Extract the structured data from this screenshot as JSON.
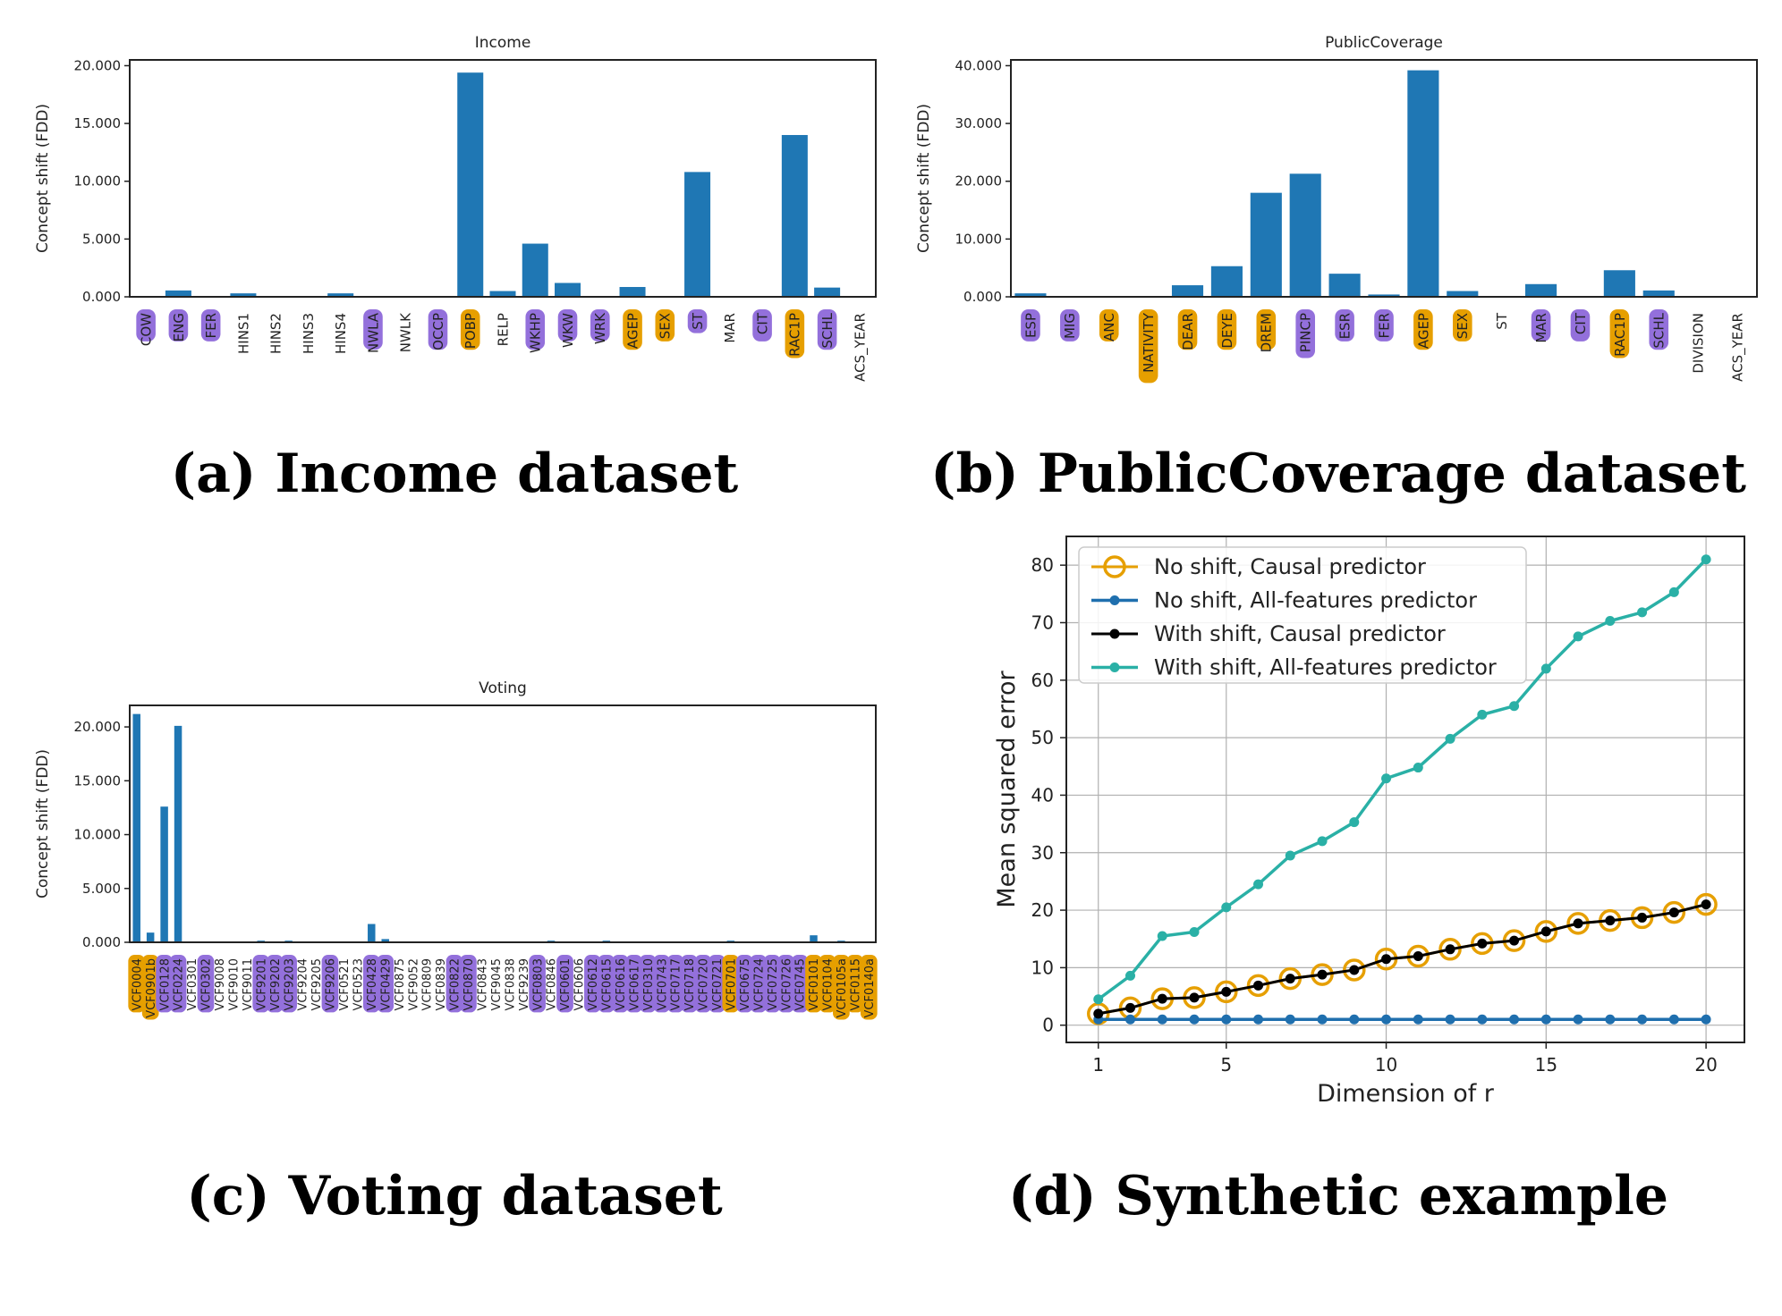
{
  "captions": {
    "a": "(a) Income dataset",
    "b": "(b) PublicCoverage dataset",
    "c": "(c) Voting dataset",
    "d": "(d) Synthetic example"
  },
  "colors": {
    "bar": "#1f77b4",
    "causal_highlight": "#e69f00",
    "anticausal_highlight": "#9370db",
    "no_shift_causal": "#e69f00",
    "no_shift_all": "#1f6fae",
    "with_shift_causal": "#000000",
    "with_shift_all": "#2ab0a6"
  },
  "chart_data": [
    {
      "id": "income",
      "type": "bar",
      "title": "Income",
      "ylabel": "Concept shift (FDD)",
      "xlabel": "",
      "ylim": [
        0,
        20.5
      ],
      "yticks": [
        0,
        5,
        10,
        15,
        20
      ],
      "ytick_labels": [
        "0.000",
        "5.000",
        "10.000",
        "15.000",
        "20.000"
      ],
      "categories": [
        "COW",
        "ENG",
        "FER",
        "HINS1",
        "HINS2",
        "HINS3",
        "HINS4",
        "NWLA",
        "NWLK",
        "OCCP",
        "POBP",
        "RELP",
        "WKHP",
        "WKW",
        "WRK",
        "AGEP",
        "SEX",
        "ST",
        "MAR",
        "CIT",
        "RAC1P",
        "SCHL",
        "ACS_YEAR"
      ],
      "values": [
        0.05,
        0.55,
        0.05,
        0.3,
        0.02,
        0.02,
        0.3,
        0.02,
        0.02,
        0.02,
        19.4,
        0.5,
        4.6,
        1.2,
        0.02,
        0.85,
        0.02,
        10.8,
        0.02,
        0.02,
        14.0,
        0.8,
        0.02
      ],
      "highlight": [
        "purple",
        "purple",
        "purple",
        "none",
        "none",
        "none",
        "none",
        "purple",
        "none",
        "purple",
        "orange",
        "none",
        "purple",
        "purple",
        "purple",
        "orange",
        "orange",
        "purple",
        "none",
        "purple",
        "orange",
        "purple",
        "none"
      ]
    },
    {
      "id": "publiccoverage",
      "type": "bar",
      "title": "PublicCoverage",
      "ylabel": "Concept shift (FDD)",
      "xlabel": "",
      "ylim": [
        0,
        41
      ],
      "yticks": [
        0,
        10,
        20,
        30,
        40
      ],
      "ytick_labels": [
        "0.000",
        "10.000",
        "20.000",
        "30.000",
        "40.000"
      ],
      "categories": [
        "ESP",
        "MIG",
        "ANC",
        "NATIVITY",
        "DEAR",
        "DEYE",
        "DREM",
        "PINCP",
        "ESR",
        "FER",
        "AGEP",
        "SEX",
        "ST",
        "MAR",
        "CIT",
        "RAC1P",
        "SCHL",
        "DIVISION",
        "ACS_YEAR"
      ],
      "values": [
        0.6,
        0.02,
        0.02,
        0.02,
        2.0,
        5.3,
        18.0,
        21.3,
        4.0,
        0.4,
        39.2,
        1.0,
        0.02,
        2.2,
        0.02,
        4.6,
        1.1,
        0.02,
        0.02
      ],
      "highlight": [
        "purple",
        "purple",
        "orange",
        "orange",
        "orange",
        "orange",
        "orange",
        "purple",
        "purple",
        "purple",
        "orange",
        "orange",
        "none",
        "purple",
        "purple",
        "orange",
        "purple",
        "none",
        "none"
      ]
    },
    {
      "id": "voting",
      "type": "bar",
      "title": "Voting",
      "ylabel": "Concept shift (FDD)",
      "xlabel": "",
      "ylim": [
        0,
        22
      ],
      "yticks": [
        0,
        5,
        10,
        15,
        20
      ],
      "ytick_labels": [
        "0.000",
        "5.000",
        "10.000",
        "15.000",
        "20.000"
      ],
      "categories": [
        "VCF0004",
        "VCF0901b",
        "VCF0128",
        "VCF0224",
        "VCF0301",
        "VCF0302",
        "VCF9008",
        "VCF9010",
        "VCF9011",
        "VCF9201",
        "VCF9202",
        "VCF9203",
        "VCF9204",
        "VCF9205",
        "VCF9206",
        "VCF0521",
        "VCF0523",
        "VCF0428",
        "VCF0429",
        "VCF0875",
        "VCF9052",
        "VCF0809",
        "VCF0839",
        "VCF0822",
        "VCF0870",
        "VCF0843",
        "VCF9045",
        "VCF0838",
        "VCF9239",
        "VCF0803",
        "VCF0846",
        "VCF0601",
        "VCF0606",
        "VCF0612",
        "VCF0615",
        "VCF0616",
        "VCF0617",
        "VCF0310",
        "VCF0743",
        "VCF0717",
        "VCF0718",
        "VCF0720",
        "VCF0721",
        "VCF0701",
        "VCF0675",
        "VCF0724",
        "VCF0725",
        "VCF0726",
        "VCF0745",
        "VCF0101",
        "VCF0104",
        "VCF0105a",
        "VCF0115",
        "VCF0140a"
      ],
      "values": [
        21.2,
        0.9,
        12.6,
        20.1,
        0.02,
        0.02,
        0.02,
        0.02,
        0.02,
        0.15,
        0.02,
        0.15,
        0.02,
        0.02,
        0.02,
        0.02,
        0.02,
        1.7,
        0.3,
        0.02,
        0.02,
        0.02,
        0.02,
        0.02,
        0.02,
        0.02,
        0.02,
        0.02,
        0.02,
        0.02,
        0.15,
        0.02,
        0.02,
        0.02,
        0.15,
        0.02,
        0.02,
        0.02,
        0.02,
        0.02,
        0.02,
        0.02,
        0.02,
        0.15,
        0.02,
        0.02,
        0.02,
        0.02,
        0.02,
        0.65,
        0.02,
        0.15,
        0.02,
        0.02
      ],
      "highlight": [
        "orange",
        "orange",
        "purple",
        "purple",
        "none",
        "purple",
        "none",
        "none",
        "none",
        "purple",
        "purple",
        "purple",
        "none",
        "none",
        "purple",
        "none",
        "none",
        "purple",
        "purple",
        "none",
        "none",
        "none",
        "none",
        "purple",
        "purple",
        "none",
        "none",
        "none",
        "none",
        "purple",
        "none",
        "purple",
        "none",
        "purple",
        "purple",
        "purple",
        "purple",
        "purple",
        "purple",
        "purple",
        "purple",
        "purple",
        "purple",
        "orange",
        "purple",
        "purple",
        "purple",
        "purple",
        "purple",
        "orange",
        "orange",
        "orange",
        "orange",
        "orange"
      ]
    },
    {
      "id": "synthetic",
      "type": "line",
      "title": "",
      "xlabel": "Dimension of r",
      "ylabel": "Mean squared error",
      "xlim": [
        0,
        21.2
      ],
      "ylim": [
        -3,
        85
      ],
      "xticks": [
        1,
        5,
        10,
        15,
        20
      ],
      "xtick_labels": [
        "1",
        "5",
        "10",
        "15",
        "20"
      ],
      "yticks": [
        0,
        10,
        20,
        30,
        40,
        50,
        60,
        70,
        80
      ],
      "ytick_labels": [
        "0",
        "10",
        "20",
        "30",
        "40",
        "50",
        "60",
        "70",
        "80"
      ],
      "grid": true,
      "legend": "top-left",
      "x": [
        1,
        2,
        3,
        4,
        5,
        6,
        7,
        8,
        9,
        10,
        11,
        12,
        13,
        14,
        15,
        16,
        17,
        18,
        19,
        20
      ],
      "series": [
        {
          "name": "No shift, Causal predictor",
          "values": [
            2.0,
            3.0,
            4.6,
            4.8,
            5.8,
            6.9,
            8.1,
            8.8,
            9.6,
            11.5,
            12.0,
            13.2,
            14.2,
            14.7,
            16.3,
            17.7,
            18.2,
            18.7,
            19.6,
            21.0
          ]
        },
        {
          "name": "No shift, All-features predictor",
          "values": [
            1.0,
            1.0,
            1.0,
            1.0,
            1.0,
            1.0,
            1.0,
            1.0,
            1.0,
            1.0,
            1.0,
            1.0,
            1.0,
            1.0,
            1.0,
            1.0,
            1.0,
            1.0,
            1.0,
            1.0
          ]
        },
        {
          "name": "With shift, Causal predictor",
          "values": [
            2.0,
            3.0,
            4.6,
            4.8,
            5.8,
            6.9,
            8.1,
            8.8,
            9.6,
            11.5,
            12.0,
            13.2,
            14.2,
            14.7,
            16.3,
            17.7,
            18.2,
            18.7,
            19.6,
            21.0
          ]
        },
        {
          "name": "With shift, All-features predictor",
          "values": [
            4.5,
            8.6,
            15.5,
            16.2,
            20.5,
            24.5,
            29.5,
            32.0,
            35.3,
            42.9,
            44.8,
            49.8,
            54.0,
            55.5,
            62.0,
            67.6,
            70.3,
            71.8,
            75.3,
            81.0
          ]
        }
      ]
    }
  ]
}
